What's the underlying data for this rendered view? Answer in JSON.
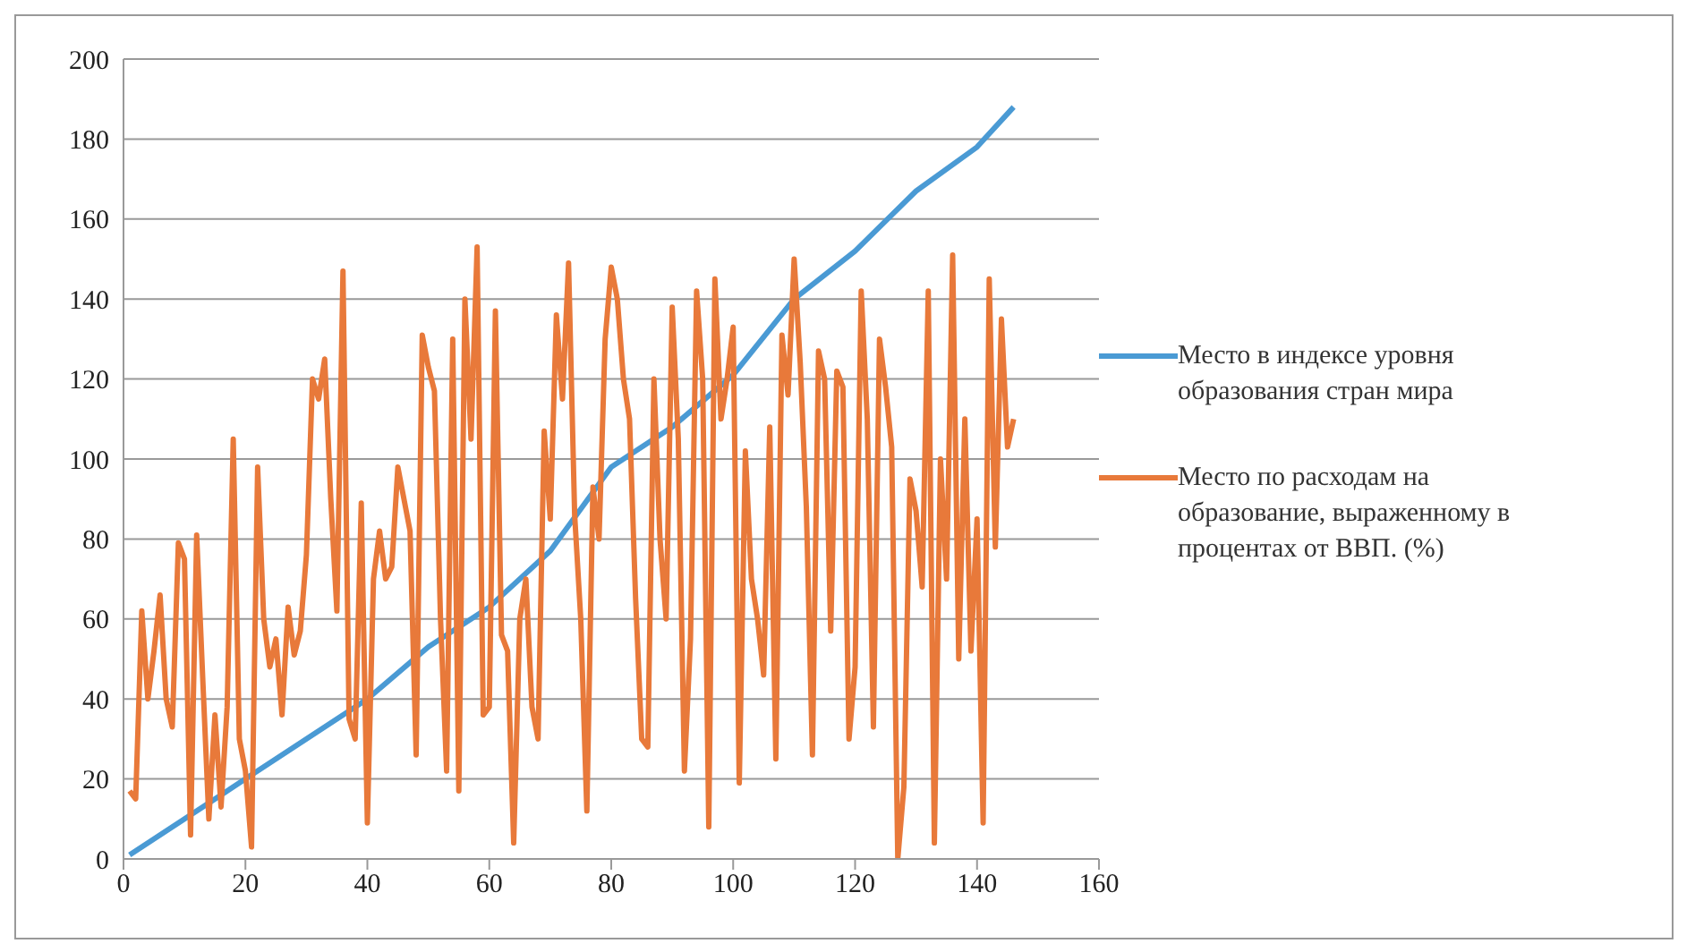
{
  "chart_data": {
    "type": "line",
    "xlim": [
      0,
      160
    ],
    "xticks": [
      0,
      20,
      40,
      60,
      80,
      100,
      120,
      140,
      160
    ],
    "ylim": [
      0,
      200
    ],
    "yticks": [
      0,
      20,
      40,
      60,
      80,
      100,
      120,
      140,
      160,
      180,
      200
    ],
    "grid": "y",
    "legend": "right",
    "marker": "none",
    "line_style": "solid",
    "series": [
      {
        "name": "Место в индексе уровня образования стран мира",
        "color": "#4a9ad4",
        "x": [
          1,
          20,
          40,
          50,
          60,
          70,
          80,
          90,
          100,
          110,
          120,
          130,
          140,
          146
        ],
        "values": [
          1,
          20,
          40,
          53,
          63,
          77,
          98,
          108,
          121,
          140,
          152,
          167,
          178,
          188
        ]
      },
      {
        "name": "Место по расходам на образование, выраженному в процентах от ВВП. (%)",
        "color": "#e8793a",
        "x": [
          1,
          2,
          3,
          4,
          5,
          6,
          7,
          8,
          9,
          10,
          11,
          12,
          13,
          14,
          15,
          16,
          17,
          18,
          19,
          20,
          21,
          22,
          23,
          24,
          25,
          26,
          27,
          28,
          29,
          30,
          31,
          32,
          33,
          34,
          35,
          36,
          37,
          38,
          39,
          40,
          41,
          42,
          43,
          44,
          45,
          46,
          47,
          48,
          49,
          50,
          51,
          52,
          53,
          54,
          55,
          56,
          57,
          58,
          59,
          60,
          61,
          62,
          63,
          64,
          65,
          66,
          67,
          68,
          69,
          70,
          71,
          72,
          73,
          74,
          75,
          76,
          77,
          78,
          79,
          80,
          81,
          82,
          83,
          84,
          85,
          86,
          87,
          88,
          89,
          90,
          91,
          92,
          93,
          94,
          95,
          96,
          97,
          98,
          99,
          100,
          101,
          102,
          103,
          104,
          105,
          106,
          107,
          108,
          109,
          110,
          111,
          112,
          113,
          114,
          115,
          116,
          117,
          118,
          119,
          120,
          121,
          122,
          123,
          124,
          125,
          126,
          127,
          128,
          129,
          130,
          131,
          132,
          133,
          134,
          135,
          136,
          137,
          138,
          139,
          140,
          141,
          142,
          143,
          144,
          145,
          146
        ],
        "values": [
          17,
          15,
          62,
          40,
          52,
          66,
          40,
          33,
          79,
          75,
          6,
          81,
          45,
          10,
          36,
          13,
          38,
          105,
          30,
          22,
          3,
          98,
          60,
          48,
          55,
          36,
          63,
          51,
          57,
          76,
          120,
          115,
          125,
          90,
          62,
          147,
          35,
          30,
          89,
          9,
          70,
          82,
          70,
          73,
          98,
          90,
          82,
          26,
          131,
          123,
          117,
          60,
          22,
          130,
          17,
          140,
          105,
          153,
          36,
          38,
          137,
          56,
          52,
          4,
          60,
          70,
          38,
          30,
          107,
          85,
          136,
          115,
          149,
          86,
          60,
          12,
          93,
          80,
          130,
          148,
          140,
          120,
          110,
          65,
          30,
          28,
          120,
          80,
          60,
          138,
          105,
          22,
          55,
          142,
          120,
          8,
          145,
          110,
          120,
          133,
          19,
          102,
          70,
          60,
          46,
          108,
          25,
          131,
          116,
          150,
          124,
          88,
          26,
          127,
          120,
          57,
          122,
          118,
          30,
          48,
          142,
          110,
          33,
          130,
          118,
          103,
          0,
          18,
          95,
          87,
          68,
          142,
          4,
          100,
          70,
          151,
          50,
          110,
          52,
          85,
          9,
          145,
          78,
          135,
          103,
          110
        ]
      }
    ]
  }
}
